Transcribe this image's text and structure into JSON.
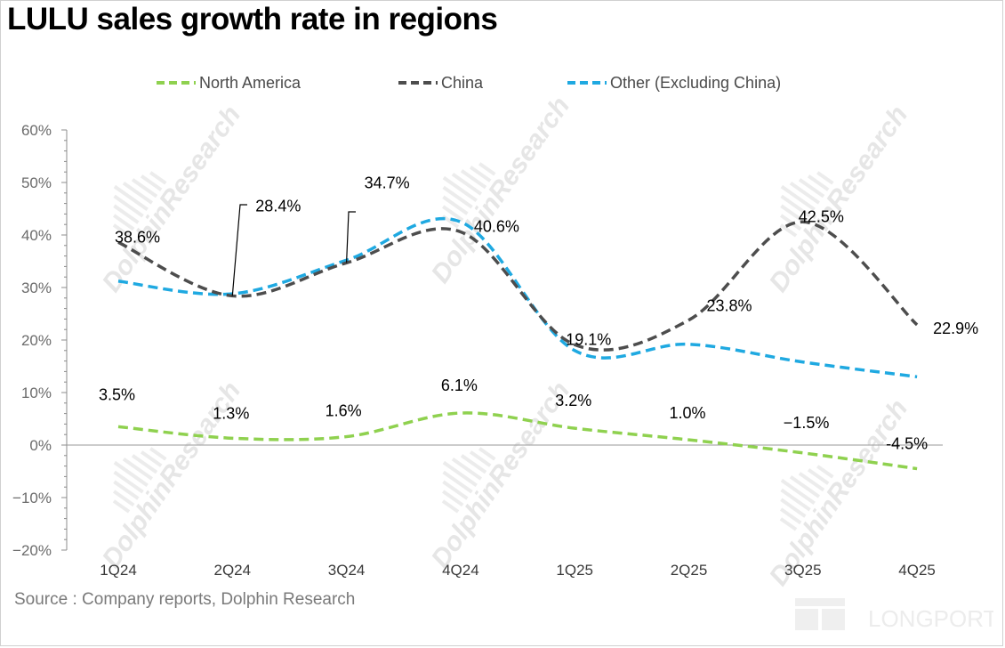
{
  "title": "LULU sales growth rate in regions",
  "source": "Source : Company reports, Dolphin Research",
  "watermark": {
    "text": "DolphinResearch",
    "brand": "LONGPORT"
  },
  "colors": {
    "north_america": "#8fd14f",
    "china": "#4d4d4d",
    "other": "#1fa9e1",
    "axis": "#8c8c8c",
    "watermark": "#e6e6e6"
  },
  "chart_data": {
    "type": "line",
    "title": "LULU sales growth rate in regions",
    "categories": [
      "1Q24",
      "2Q24",
      "3Q24",
      "4Q24",
      "1Q25",
      "2Q25",
      "3Q25",
      "4Q25"
    ],
    "ylim": [
      -20,
      60
    ],
    "yticks": [
      -20,
      -10,
      0,
      10,
      20,
      30,
      40,
      50,
      60
    ],
    "ytick_labels": [
      "−20%",
      "−10%",
      "0%",
      "10%",
      "20%",
      "30%",
      "40%",
      "50%",
      "60%"
    ],
    "unit": "%",
    "grid": false,
    "legend": "top",
    "series": [
      {
        "name": "North America",
        "color": "#8fd14f",
        "style": "dashed",
        "values": [
          3.5,
          1.3,
          1.6,
          6.1,
          3.2,
          1.0,
          -1.5,
          -4.5
        ],
        "labels": [
          "3.5%",
          "1.3%",
          "1.6%",
          "6.1%",
          "3.2%",
          "1.0%",
          "−1.5%",
          "-4.5%"
        ]
      },
      {
        "name": "China",
        "color": "#4d4d4d",
        "style": "dashed",
        "values": [
          38.6,
          28.4,
          34.7,
          40.6,
          19.1,
          23.8,
          42.5,
          22.9
        ],
        "labels": [
          "38.6%",
          "28.4%",
          "34.7%",
          "40.6%",
          "19.1%",
          "23.8%",
          "42.5%",
          "22.9%"
        ]
      },
      {
        "name": "Other (Excluding China)",
        "color": "#1fa9e1",
        "style": "dashed",
        "values": [
          31.2,
          28.8,
          35.2,
          42.5,
          18.0,
          19.2,
          15.8,
          13.0
        ],
        "labels": []
      }
    ]
  }
}
